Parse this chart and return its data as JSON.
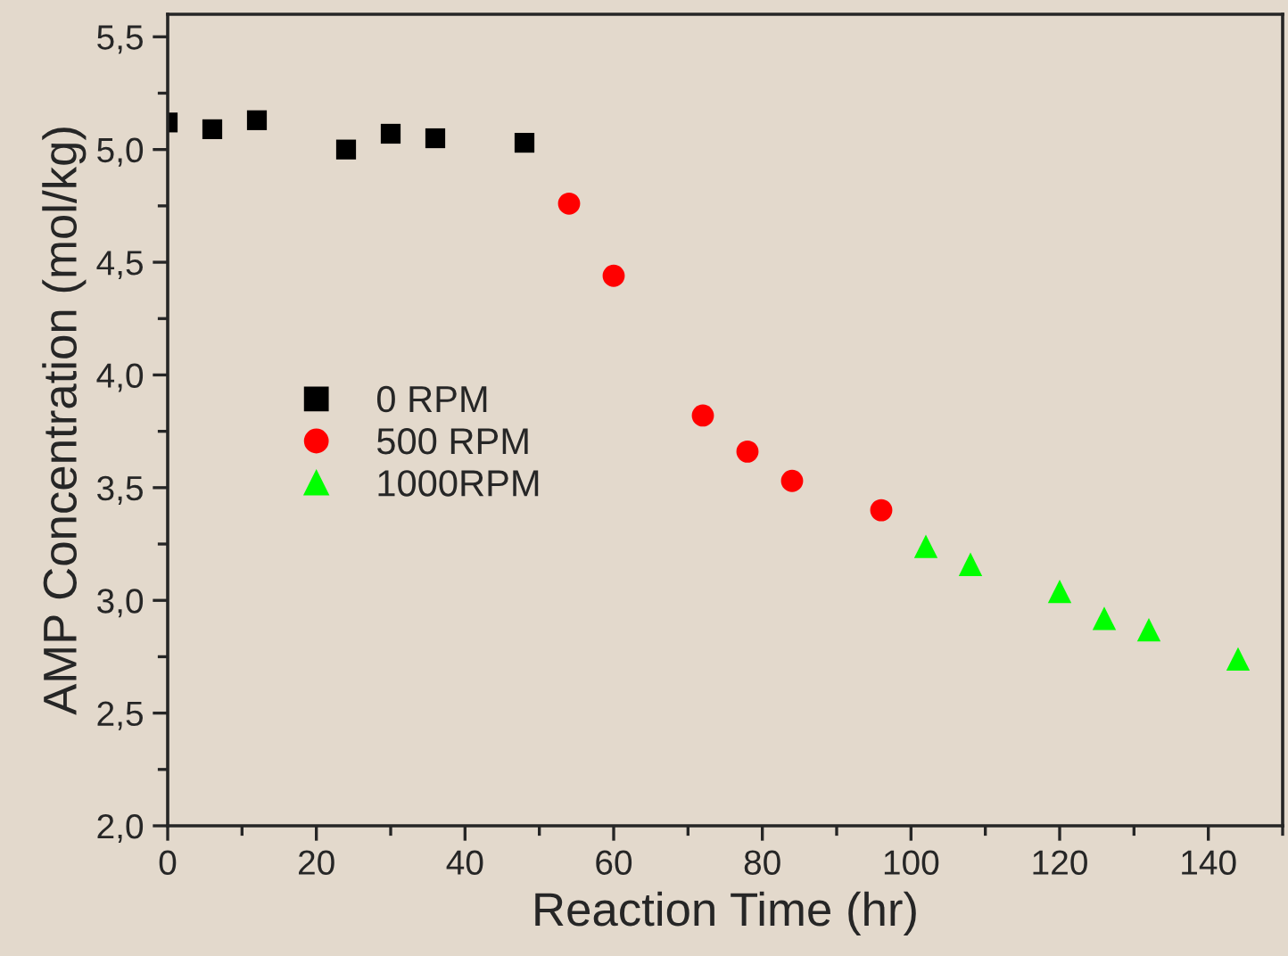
{
  "chart_data": {
    "type": "scatter",
    "xlabel": "Reaction Time (hr)",
    "ylabel": "AMP Concentration (mol/kg)",
    "xlim": [
      0,
      150
    ],
    "ylim": [
      2.0,
      5.6
    ],
    "xticks": [
      0,
      20,
      40,
      60,
      80,
      100,
      120,
      140
    ],
    "yticks": [
      {
        "value": 2.0,
        "label": "2,0"
      },
      {
        "value": 2.5,
        "label": "2,5"
      },
      {
        "value": 3.0,
        "label": "3,0"
      },
      {
        "value": 3.5,
        "label": "3,5"
      },
      {
        "value": 4.0,
        "label": "4,0"
      },
      {
        "value": 4.5,
        "label": "4,5"
      },
      {
        "value": 5.0,
        "label": "5,0"
      },
      {
        "value": 5.5,
        "label": "5,5"
      }
    ],
    "grid": false,
    "legend": "left",
    "series": [
      {
        "name": "0 RPM",
        "color": "#000000",
        "marker": "square",
        "x": [
          0,
          6,
          12,
          24,
          30,
          36,
          48
        ],
        "values": [
          5.12,
          5.09,
          5.13,
          5.0,
          5.07,
          5.05,
          5.03
        ]
      },
      {
        "name": "500 RPM",
        "color": "#ff0000",
        "marker": "circle",
        "x": [
          54,
          60,
          72,
          78,
          84,
          96
        ],
        "values": [
          4.76,
          4.44,
          3.82,
          3.66,
          3.53,
          3.4
        ]
      },
      {
        "name": "1000RPM",
        "color": "#00ff00",
        "marker": "triangle",
        "x": [
          102,
          108,
          120,
          126,
          132,
          144
        ],
        "values": [
          3.24,
          3.16,
          3.04,
          2.92,
          2.87,
          2.74
        ]
      }
    ]
  }
}
